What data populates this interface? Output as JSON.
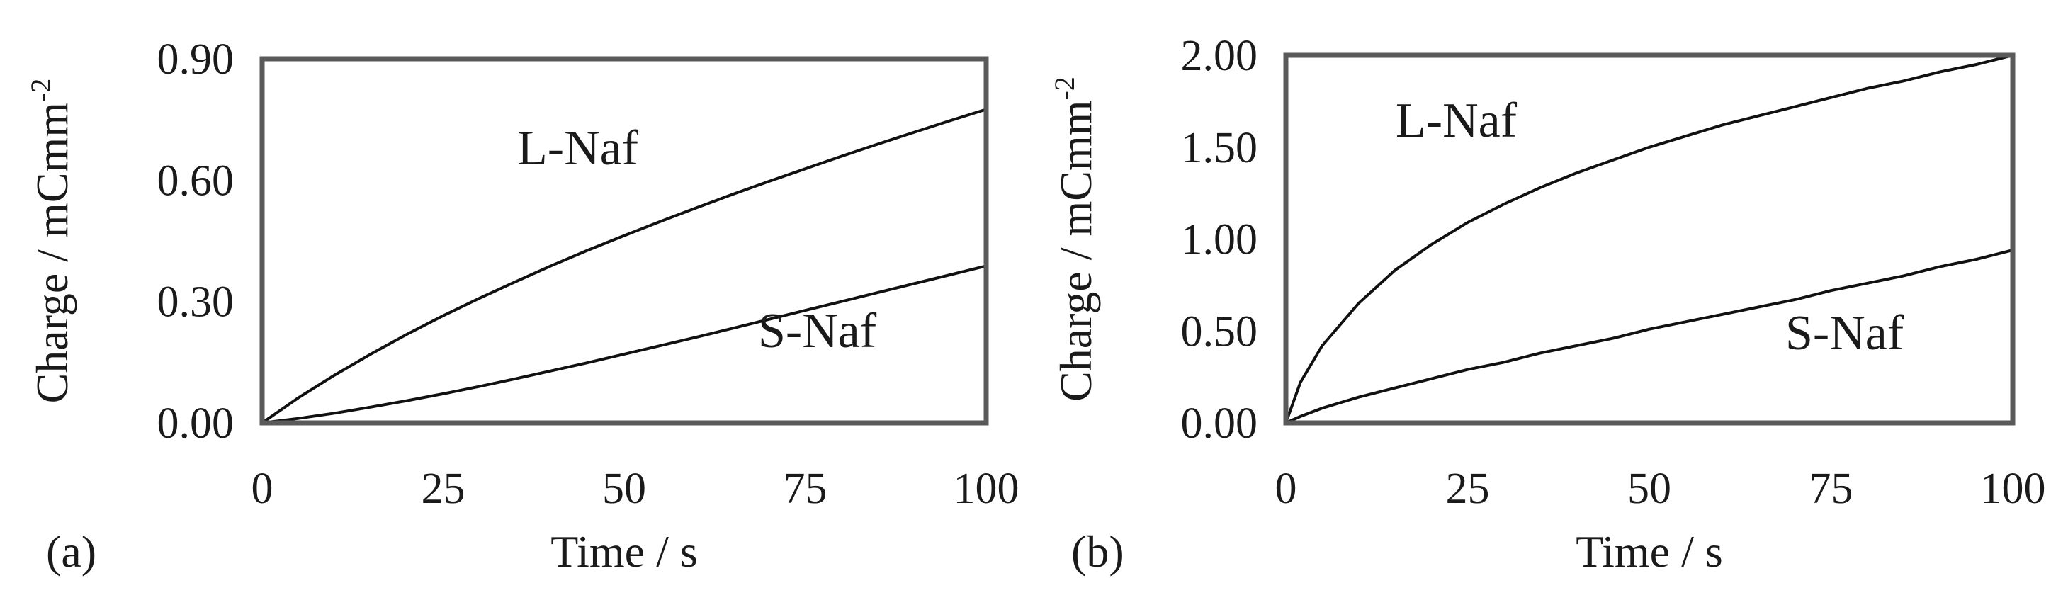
{
  "chart_data": [
    {
      "type": "line",
      "panel_label": "(a)",
      "xlabel": "Time / s",
      "ylabel": "Charge / mCmm",
      "ylabel_superscript": "-2",
      "xlim": [
        0,
        100
      ],
      "ylim": [
        0,
        0.9
      ],
      "x_ticks": [
        "0",
        "25",
        "50",
        "75",
        "100"
      ],
      "y_ticks": [
        "0.00",
        "0.30",
        "0.60",
        "0.90"
      ],
      "series": [
        {
          "name": "L-Naf",
          "x": [
            0,
            5,
            10,
            15,
            20,
            25,
            30,
            35,
            40,
            45,
            50,
            55,
            60,
            65,
            70,
            75,
            80,
            85,
            90,
            95,
            100
          ],
          "y": [
            0,
            0.062,
            0.118,
            0.17,
            0.219,
            0.265,
            0.308,
            0.349,
            0.389,
            0.427,
            0.463,
            0.498,
            0.532,
            0.565,
            0.597,
            0.628,
            0.659,
            0.689,
            0.718,
            0.747,
            0.775
          ]
        },
        {
          "name": "S-Naf",
          "x": [
            0,
            5,
            10,
            15,
            20,
            25,
            30,
            35,
            40,
            45,
            50,
            55,
            60,
            65,
            70,
            75,
            80,
            85,
            90,
            95,
            100
          ],
          "y": [
            0,
            0.011,
            0.024,
            0.039,
            0.055,
            0.072,
            0.09,
            0.109,
            0.129,
            0.149,
            0.17,
            0.191,
            0.212,
            0.234,
            0.256,
            0.278,
            0.3,
            0.322,
            0.344,
            0.366,
            0.388
          ]
        }
      ]
    },
    {
      "type": "line",
      "panel_label": "(b)",
      "xlabel": "Time / s",
      "ylabel": "Charge / mCmm",
      "ylabel_superscript": "-2",
      "xlim": [
        0,
        100
      ],
      "ylim": [
        0,
        2.0
      ],
      "x_ticks": [
        "0",
        "25",
        "50",
        "75",
        "100"
      ],
      "y_ticks": [
        "0.00",
        "0.50",
        "1.00",
        "1.50",
        "2.00"
      ],
      "series": [
        {
          "name": "L-Naf",
          "x": [
            0,
            2,
            5,
            10,
            15,
            20,
            25,
            30,
            35,
            40,
            45,
            50,
            55,
            60,
            65,
            70,
            75,
            80,
            85,
            90,
            95,
            100
          ],
          "y": [
            0,
            0.22,
            0.42,
            0.65,
            0.83,
            0.97,
            1.09,
            1.19,
            1.28,
            1.36,
            1.43,
            1.5,
            1.56,
            1.62,
            1.67,
            1.72,
            1.77,
            1.82,
            1.86,
            1.91,
            1.95,
            2.0
          ]
        },
        {
          "name": "S-Naf",
          "x": [
            0,
            2,
            5,
            10,
            15,
            20,
            25,
            30,
            35,
            40,
            45,
            50,
            55,
            60,
            65,
            70,
            75,
            80,
            85,
            90,
            95,
            100
          ],
          "y": [
            0,
            0.035,
            0.08,
            0.14,
            0.19,
            0.24,
            0.29,
            0.33,
            0.38,
            0.42,
            0.46,
            0.51,
            0.55,
            0.59,
            0.63,
            0.67,
            0.72,
            0.76,
            0.8,
            0.85,
            0.89,
            0.94
          ]
        }
      ]
    }
  ]
}
